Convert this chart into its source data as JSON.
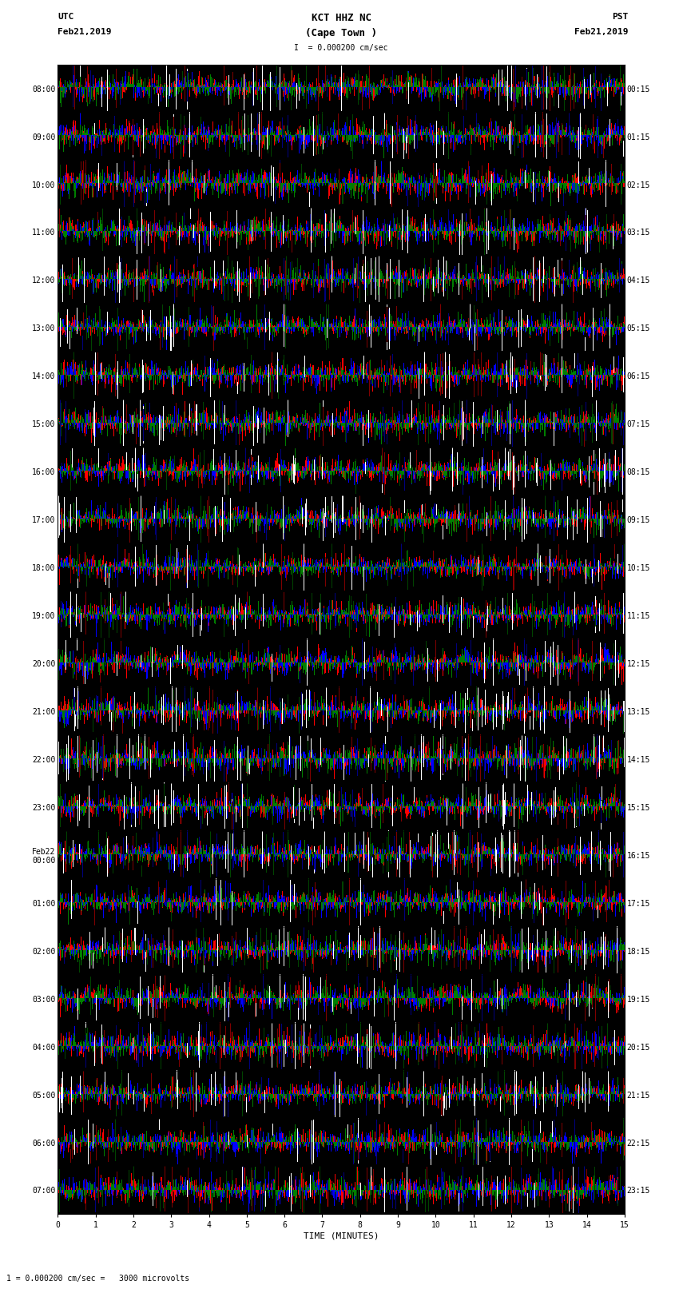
{
  "title_line1": "KCT HHZ NC",
  "title_line2": "(Cape Town )",
  "scale_text": "= 0.000200 cm/sec",
  "left_label": "UTC",
  "left_date": "Feb21,2019",
  "right_label": "PST",
  "right_date": "Feb21,2019",
  "xlabel": "TIME (MINUTES)",
  "bottom_label": "= 0.000200 cm/sec =   3000 microvolts",
  "utc_times": [
    "08:00",
    "09:00",
    "10:00",
    "11:00",
    "12:00",
    "13:00",
    "14:00",
    "15:00",
    "16:00",
    "17:00",
    "18:00",
    "19:00",
    "20:00",
    "21:00",
    "22:00",
    "23:00",
    "Feb22\n00:00",
    "01:00",
    "02:00",
    "03:00",
    "04:00",
    "05:00",
    "06:00",
    "07:00"
  ],
  "pst_times": [
    "00:15",
    "01:15",
    "02:15",
    "03:15",
    "04:15",
    "05:15",
    "06:15",
    "07:15",
    "08:15",
    "09:15",
    "10:15",
    "11:15",
    "12:15",
    "13:15",
    "14:15",
    "15:15",
    "16:15",
    "17:15",
    "18:15",
    "19:15",
    "20:15",
    "21:15",
    "22:15",
    "23:15"
  ],
  "num_rows": 24,
  "minutes_per_row": 15,
  "bg_color": "#ffffff",
  "seed": 42
}
